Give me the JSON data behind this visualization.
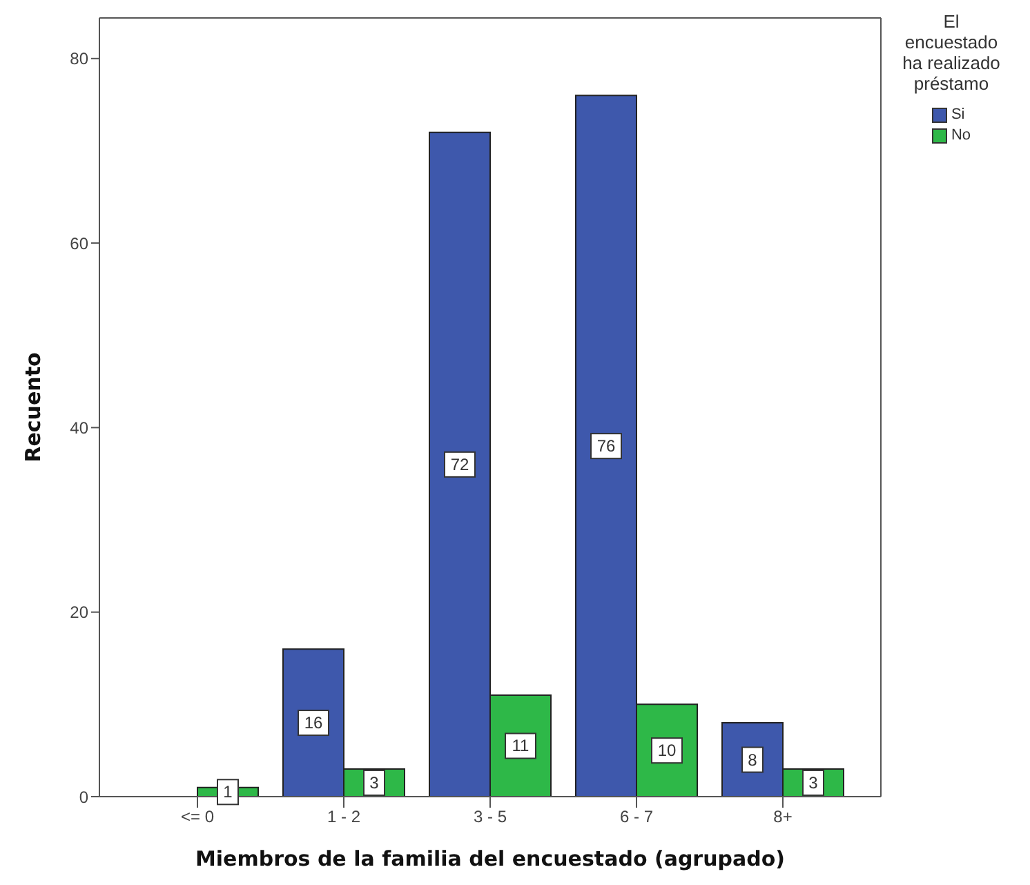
{
  "chart_data": {
    "type": "bar",
    "xlabel": "Miembros de la familia del encuestado (agrupado)",
    "ylabel": "Recuento",
    "legend_title": "El encuestado ha realizado préstamo",
    "categories": [
      "<= 0",
      "1 - 2",
      "3 - 5",
      "6 - 7",
      "8+"
    ],
    "series": [
      {
        "name": "Si",
        "color": "#3e58ac",
        "values": [
          null,
          16,
          72,
          76,
          8
        ]
      },
      {
        "name": "No",
        "color": "#2eb848",
        "values": [
          1,
          3,
          11,
          10,
          3
        ]
      }
    ],
    "ylim": [
      0,
      84.4
    ],
    "yticks": [
      0,
      20,
      40,
      60,
      80
    ],
    "grid": false,
    "legend": "top right",
    "data_labels": true
  }
}
